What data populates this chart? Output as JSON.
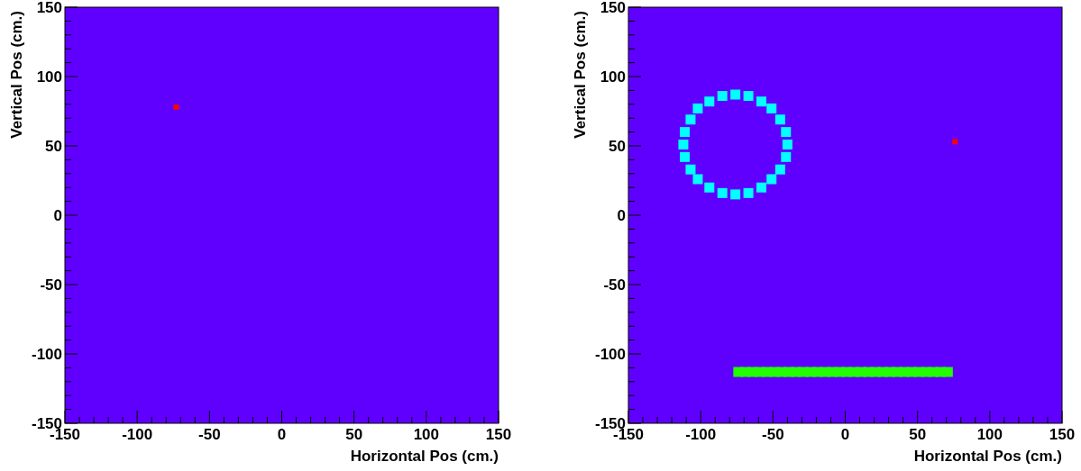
{
  "chart_data": [
    {
      "type": "scatter",
      "xlabel": "Horizontal Pos (cm.)",
      "ylabel": "Vertical Pos (cm.)",
      "xlim": [
        -150,
        150
      ],
      "ylim": [
        -150,
        150
      ],
      "marker": "square",
      "grid": false,
      "xticks": [
        -150,
        {
          "value": -140,
          "label": null
        },
        {
          "value": -130,
          "label": null
        },
        {
          "value": -120,
          "label": null
        },
        {
          "value": -110,
          "label": null
        },
        -100,
        {
          "value": -90,
          "label": null
        },
        {
          "value": -80,
          "label": null
        },
        {
          "value": -70,
          "label": null
        },
        {
          "value": -60,
          "label": null
        },
        -50,
        {
          "value": -40,
          "label": null
        },
        {
          "value": -30,
          "label": null
        },
        {
          "value": -20,
          "label": null
        },
        {
          "value": -10,
          "label": null
        },
        0,
        {
          "value": 10,
          "label": null
        },
        {
          "value": 20,
          "label": null
        },
        {
          "value": 30,
          "label": null
        },
        {
          "value": 40,
          "label": null
        },
        50,
        {
          "value": 60,
          "label": null
        },
        {
          "value": 70,
          "label": null
        },
        {
          "value": 80,
          "label": null
        },
        {
          "value": 90,
          "label": null
        },
        100,
        {
          "value": 110,
          "label": null
        },
        {
          "value": 120,
          "label": null
        },
        {
          "value": 130,
          "label": null
        },
        {
          "value": 140,
          "label": null
        },
        150
      ],
      "yticks": [
        -150,
        {
          "value": -140,
          "label": null
        },
        {
          "value": -130,
          "label": null
        },
        {
          "value": -120,
          "label": null
        },
        {
          "value": -110,
          "label": null
        },
        -100,
        {
          "value": -90,
          "label": null
        },
        {
          "value": -80,
          "label": null
        },
        {
          "value": -70,
          "label": null
        },
        {
          "value": -60,
          "label": null
        },
        -50,
        {
          "value": -40,
          "label": null
        },
        {
          "value": -30,
          "label": null
        },
        {
          "value": -20,
          "label": null
        },
        {
          "value": -10,
          "label": null
        },
        0,
        {
          "value": 10,
          "label": null
        },
        {
          "value": 20,
          "label": null
        },
        {
          "value": 30,
          "label": null
        },
        {
          "value": 40,
          "label": null
        },
        50,
        {
          "value": 60,
          "label": null
        },
        {
          "value": 70,
          "label": null
        },
        {
          "value": 80,
          "label": null
        },
        {
          "value": 90,
          "label": null
        },
        100,
        {
          "value": 110,
          "label": null
        },
        {
          "value": 120,
          "label": null
        },
        {
          "value": 130,
          "label": null
        },
        {
          "value": 140,
          "label": null
        },
        150
      ],
      "series": [
        {
          "color": "#ff0000",
          "x": [
            -73
          ],
          "values": [
            78
          ]
        }
      ]
    },
    {
      "type": "scatter",
      "xlabel": "Horizontal Pos (cm.)",
      "ylabel": "Vertical Pos (cm.)",
      "xlim": [
        -150,
        150
      ],
      "ylim": [
        -150,
        150
      ],
      "marker": "square",
      "grid": false,
      "xticks": [
        -150,
        {
          "value": -140,
          "label": null
        },
        {
          "value": -130,
          "label": null
        },
        {
          "value": -120,
          "label": null
        },
        {
          "value": -110,
          "label": null
        },
        -100,
        {
          "value": -90,
          "label": null
        },
        {
          "value": -80,
          "label": null
        },
        {
          "value": -70,
          "label": null
        },
        {
          "value": -60,
          "label": null
        },
        -50,
        {
          "value": -40,
          "label": null
        },
        {
          "value": -30,
          "label": null
        },
        {
          "value": -20,
          "label": null
        },
        {
          "value": -10,
          "label": null
        },
        0,
        {
          "value": 10,
          "label": null
        },
        {
          "value": 20,
          "label": null
        },
        {
          "value": 30,
          "label": null
        },
        {
          "value": 40,
          "label": null
        },
        50,
        {
          "value": 60,
          "label": null
        },
        {
          "value": 70,
          "label": null
        },
        {
          "value": 80,
          "label": null
        },
        {
          "value": 90,
          "label": null
        },
        100,
        {
          "value": 110,
          "label": null
        },
        {
          "value": 120,
          "label": null
        },
        {
          "value": 130,
          "label": null
        },
        {
          "value": 140,
          "label": null
        },
        150
      ],
      "yticks": [
        -150,
        {
          "value": -140,
          "label": null
        },
        {
          "value": -130,
          "label": null
        },
        {
          "value": -120,
          "label": null
        },
        {
          "value": -110,
          "label": null
        },
        -100,
        {
          "value": -90,
          "label": null
        },
        {
          "value": -80,
          "label": null
        },
        {
          "value": -70,
          "label": null
        },
        {
          "value": -60,
          "label": null
        },
        -50,
        {
          "value": -40,
          "label": null
        },
        {
          "value": -30,
          "label": null
        },
        {
          "value": -20,
          "label": null
        },
        {
          "value": -10,
          "label": null
        },
        0,
        {
          "value": 10,
          "label": null
        },
        {
          "value": 20,
          "label": null
        },
        {
          "value": 30,
          "label": null
        },
        {
          "value": 40,
          "label": null
        },
        50,
        {
          "value": 60,
          "label": null
        },
        {
          "value": 70,
          "label": null
        },
        {
          "value": 80,
          "label": null
        },
        {
          "value": 90,
          "label": null
        },
        100,
        {
          "value": 110,
          "label": null
        },
        {
          "value": 120,
          "label": null
        },
        {
          "value": 130,
          "label": null
        },
        {
          "value": 140,
          "label": null
        },
        150
      ],
      "series": [
        {
          "color": "#00ffff",
          "x": [
            -40,
            -41,
            -45,
            -51,
            -58,
            -67,
            -76,
            -85,
            -94,
            -102,
            -107,
            -111,
            -112,
            -111,
            -107,
            -102,
            -94,
            -85,
            -76,
            -67,
            -58,
            -51,
            -45,
            -41
          ],
          "values": [
            51,
            60,
            69,
            77,
            82,
            86,
            87,
            86,
            82,
            77,
            69,
            60,
            51,
            42,
            33,
            26,
            20,
            16,
            15,
            16,
            20,
            26,
            33,
            42
          ]
        },
        {
          "color": "#22ff00",
          "x": [
            -74,
            -69,
            -64,
            -59,
            -54,
            -49,
            -44,
            -39,
            -34,
            -29,
            -24,
            -19,
            -14,
            -9,
            -4,
            1,
            6,
            11,
            16,
            21,
            26,
            31,
            36,
            41,
            46,
            51,
            56,
            61,
            66,
            71
          ],
          "values": [
            -113,
            -113,
            -113,
            -113,
            -113,
            -113,
            -113,
            -113,
            -113,
            -113,
            -113,
            -113,
            -113,
            -113,
            -113,
            -113,
            -113,
            -113,
            -113,
            -113,
            -113,
            -113,
            -113,
            -113,
            -113,
            -113,
            -113,
            -113,
            -113,
            -113
          ]
        },
        {
          "color": "#ff0000",
          "x": [
            76
          ],
          "values": [
            53
          ]
        }
      ]
    }
  ]
}
